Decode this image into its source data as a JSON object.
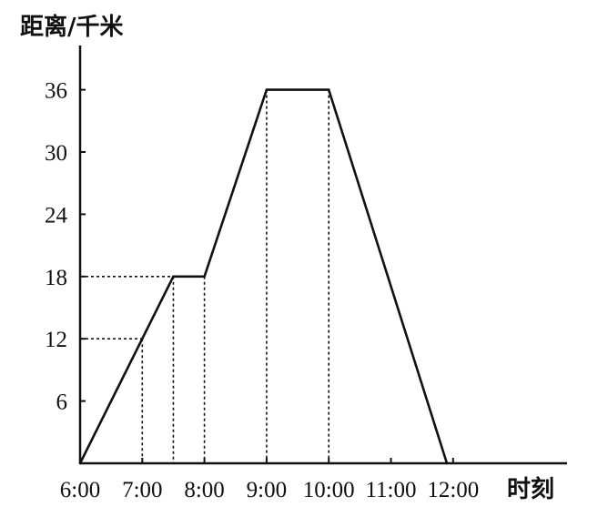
{
  "chart_data": {
    "type": "line",
    "ylabel": "距离/千米",
    "xlabel": "时刻",
    "x_tick_labels": [
      "6:00",
      "7:00",
      "8:00",
      "9:00",
      "10:00",
      "11:00",
      "12:00"
    ],
    "x_tick_values": [
      6,
      7,
      8,
      9,
      10,
      11,
      12
    ],
    "y_tick_labels": [
      "6",
      "12",
      "18",
      "24",
      "30",
      "36"
    ],
    "y_tick_values": [
      6,
      12,
      18,
      24,
      30,
      36
    ],
    "xlim": [
      6,
      13
    ],
    "ylim": [
      0,
      40
    ],
    "series": [
      {
        "points": [
          {
            "x": 6,
            "y": 0
          },
          {
            "x": 7.5,
            "y": 18
          },
          {
            "x": 8,
            "y": 18
          },
          {
            "x": 9,
            "y": 36
          },
          {
            "x": 10,
            "y": 36
          },
          {
            "x": 11.9,
            "y": 0
          }
        ]
      }
    ],
    "reference_lines": [
      {
        "x": 7,
        "y": 12
      },
      {
        "x": 7.5,
        "y": 18
      },
      {
        "x": 8,
        "y": 18
      },
      {
        "x": 9,
        "y": 36
      },
      {
        "x": 10,
        "y": 36
      }
    ],
    "grid": false,
    "legend": "none"
  }
}
